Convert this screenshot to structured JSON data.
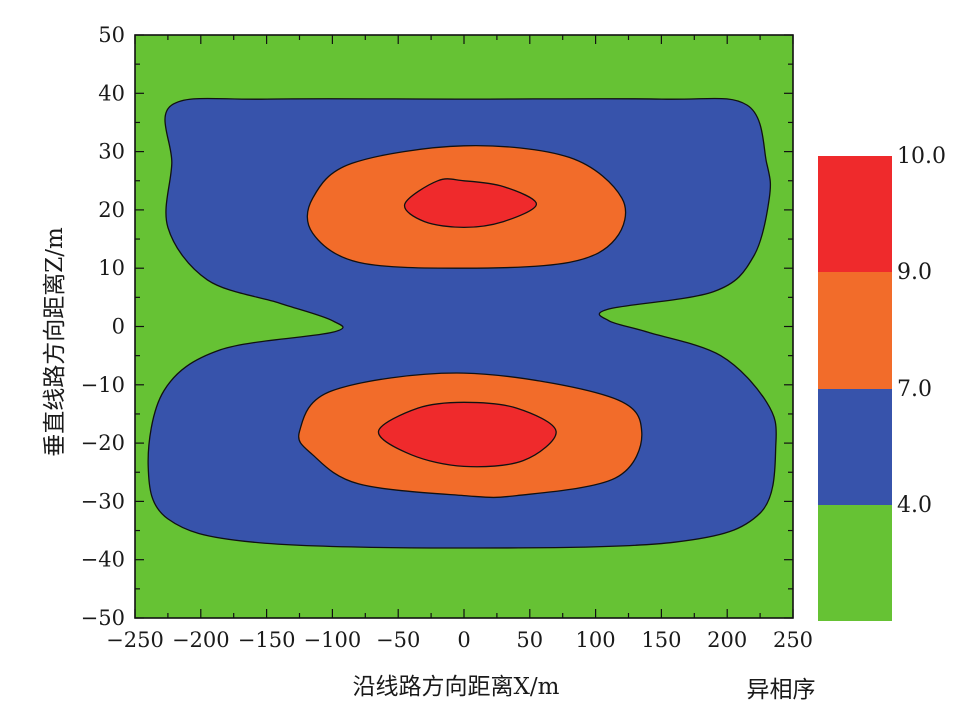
{
  "chart_data": {
    "type": "contour",
    "xlabel": "沿线路方向距离X/m",
    "ylabel": "垂直线路方向距离Z/m",
    "xlim": [
      -250,
      250
    ],
    "ylim": [
      -50,
      50
    ],
    "x_ticks": [
      "−250",
      "−200",
      "−150",
      "−100",
      "−50",
      "0",
      "50",
      "100",
      "150",
      "200",
      "250"
    ],
    "x_tick_values": [
      -250,
      -200,
      -150,
      -100,
      -50,
      0,
      50,
      100,
      150,
      200,
      250
    ],
    "y_ticks": [
      "50",
      "40",
      "30",
      "20",
      "10",
      "0",
      "−10",
      "−20",
      "−30",
      "−40",
      "−50"
    ],
    "y_tick_values": [
      50,
      40,
      30,
      20,
      10,
      0,
      -10,
      -20,
      -30,
      -40,
      -50
    ],
    "colorbar": {
      "title": "异相序",
      "levels": [
        "10.0",
        "9.0",
        "7.0",
        "4.0"
      ],
      "level_values": [
        10.0,
        9.0,
        7.0,
        4.0
      ],
      "bands": [
        {
          "range": [
            9.0,
            10.0
          ],
          "color": "#ef2a2c"
        },
        {
          "range": [
            7.0,
            9.0
          ],
          "color": "#f26c2a"
        },
        {
          "range": [
            4.0,
            7.0
          ],
          "color": "#3753ab"
        },
        {
          "range": [
            null,
            4.0
          ],
          "color": "#66c234"
        }
      ]
    },
    "regions": [
      {
        "level": "4.0-7.0",
        "color": "#3753ab",
        "points": [
          [
            -222,
            38
          ],
          [
            -150,
            39
          ],
          [
            0,
            39
          ],
          [
            150,
            39
          ],
          [
            215,
            38
          ],
          [
            230,
            28
          ],
          [
            232,
            22
          ],
          [
            220,
            12
          ],
          [
            190,
            6
          ],
          [
            110,
            3
          ],
          [
            110,
            1
          ],
          [
            140,
            -1
          ],
          [
            195,
            -5
          ],
          [
            230,
            -13
          ],
          [
            237,
            -20
          ],
          [
            225,
            -32
          ],
          [
            160,
            -37
          ],
          [
            0,
            -38
          ],
          [
            -160,
            -37
          ],
          [
            -225,
            -33
          ],
          [
            -240,
            -24
          ],
          [
            -228,
            -11
          ],
          [
            -185,
            -4
          ],
          [
            -100,
            -1
          ],
          [
            -100,
            1
          ],
          [
            -140,
            4
          ],
          [
            -195,
            8
          ],
          [
            -225,
            17
          ],
          [
            -222,
            28
          ]
        ]
      },
      {
        "level": "7.0-9.0 (upper)",
        "color": "#f26c2a",
        "points": [
          [
            -115,
            22
          ],
          [
            -85,
            28
          ],
          [
            0,
            31
          ],
          [
            80,
            29
          ],
          [
            120,
            22
          ],
          [
            115,
            15
          ],
          [
            80,
            11
          ],
          [
            0,
            10
          ],
          [
            -80,
            11
          ],
          [
            -115,
            16
          ]
        ]
      },
      {
        "level": "9.0-10.0 (upper)",
        "color": "#ef2a2c",
        "points": [
          [
            -45,
            21
          ],
          [
            -20,
            25
          ],
          [
            0,
            25
          ],
          [
            30,
            24
          ],
          [
            55,
            21
          ],
          [
            30,
            18
          ],
          [
            0,
            17
          ],
          [
            -30,
            18
          ]
        ]
      },
      {
        "level": "7.0-9.0 (lower)",
        "color": "#f26c2a",
        "points": [
          [
            -125,
            -18
          ],
          [
            -100,
            -11
          ],
          [
            0,
            -8
          ],
          [
            110,
            -12
          ],
          [
            135,
            -18
          ],
          [
            115,
            -26
          ],
          [
            40,
            -29
          ],
          [
            0,
            -29
          ],
          [
            -80,
            -27
          ],
          [
            -115,
            -22
          ]
        ]
      },
      {
        "level": "9.0-10.0 (lower)",
        "color": "#ef2a2c",
        "points": [
          [
            -65,
            -18
          ],
          [
            -35,
            -14
          ],
          [
            0,
            -13
          ],
          [
            40,
            -14
          ],
          [
            70,
            -18
          ],
          [
            45,
            -23
          ],
          [
            0,
            -24
          ],
          [
            -40,
            -22
          ]
        ]
      }
    ],
    "background_color": "#66c234"
  }
}
